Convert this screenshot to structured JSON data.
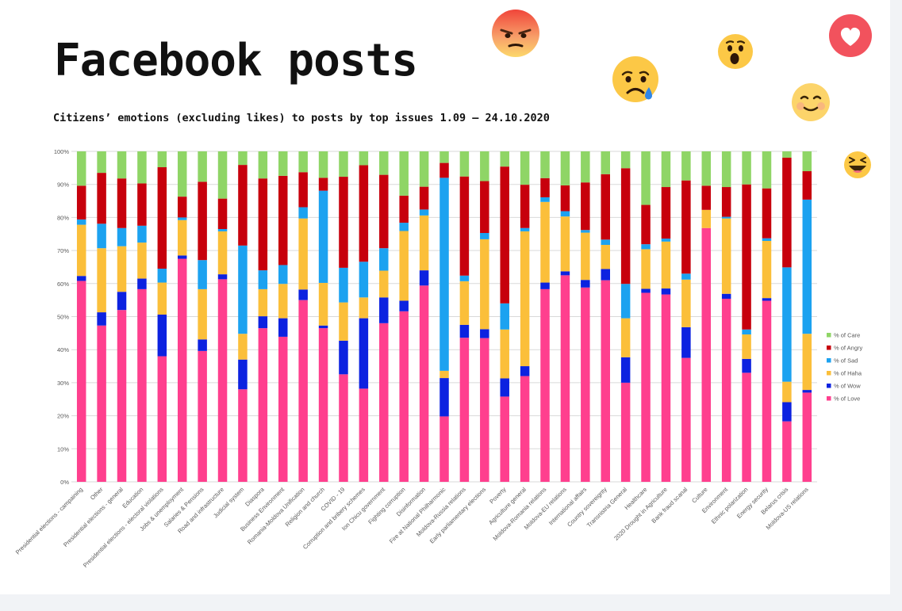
{
  "header": {
    "title": "Facebook posts",
    "subtitle": "Citizens’ emotions (excluding likes) to posts by top issues 1.09 – 24.10.2020"
  },
  "reactions": [
    "angry-reaction",
    "sad-reaction",
    "wow-reaction",
    "love-reaction",
    "care-reaction",
    "haha-reaction"
  ],
  "colors": {
    "love": "#ff3f8e",
    "wow": "#0c22e0",
    "haha": "#fbbf3a",
    "sad": "#1ca2f0",
    "angry": "#c7000c",
    "care": "#8fd566",
    "grid": "#d9d9d9",
    "axis_text": "#595959"
  },
  "chart_data": {
    "type": "bar",
    "stacked": true,
    "grid": true,
    "legend_position": "right",
    "ylim": [
      0,
      100
    ],
    "y_ticks": [
      "0%",
      "10%",
      "20%",
      "30%",
      "40%",
      "50%",
      "60%",
      "70%",
      "80%",
      "90%",
      "100%"
    ],
    "categories": [
      "Presidential elections - campaining",
      "Other",
      "Presidential elections - general",
      "Education",
      "Presidential elections - electoral violations",
      "Jobs & unemployment",
      "Salaries & Pensions",
      "Road and infrastructure",
      "Judicial system",
      "Diaspora",
      "Business Environment",
      "Romania-Moldova Unification",
      "Religion and church",
      "COVID - 19",
      "Corruption and bribery schemes",
      "Ion Chicu government",
      "Fighting corruption",
      "Disinformation",
      "Fire at National Philharmonic",
      "Moldova-Russia relations",
      "Early parliamentary elections",
      "Poverty",
      "Agriculture general",
      "Moldova-Romania relations",
      "Moldova-EU relations",
      "International affairs",
      "Country sovereignty",
      "Transnistria General",
      "Healthcare",
      "2020 Drought in Agriculture",
      "Bank fraud scanal",
      "Culture",
      "Environment",
      "Ethnic polarization",
      "Energy security",
      "Belarus crisis",
      "Moldova-US relations"
    ],
    "legend": [
      "% of Care",
      "% of Angry",
      "% of Sad",
      "% of Haha",
      "% of Wow",
      "% of Love"
    ],
    "series": [
      {
        "name": "% of Love",
        "key": "love",
        "values": [
          60.8,
          47.3,
          52,
          58.3,
          38,
          67.5,
          39.6,
          61.3,
          28,
          46.5,
          43.9,
          55,
          46.5,
          32.6,
          28.2,
          48,
          51.6,
          59.4,
          19.8,
          43.6,
          43.5,
          25.8,
          32,
          58.3,
          62.5,
          58.8,
          61,
          30,
          57.2,
          56.7,
          37.5,
          76.8,
          55.4,
          33,
          54.8,
          18.3,
          27
        ]
      },
      {
        "name": "% of Wow",
        "key": "wow",
        "values": [
          1.5,
          4,
          5.5,
          3.2,
          12.6,
          1,
          3.5,
          1.5,
          9,
          3.6,
          5.6,
          3.2,
          0.8,
          10.2,
          21.3,
          7.8,
          3.2,
          4.6,
          11.6,
          3.9,
          2.7,
          5.5,
          3,
          2,
          1.2,
          2.3,
          3.4,
          7.7,
          1.2,
          1.8,
          9.3,
          0,
          1.5,
          4.2,
          0.8,
          5.8,
          0.8
        ]
      },
      {
        "name": "% of Haha",
        "key": "haha",
        "values": [
          15.5,
          19.4,
          13.8,
          10.9,
          9.7,
          10.7,
          15.2,
          13,
          7.8,
          8.2,
          10.4,
          21.5,
          12.9,
          11.6,
          6.3,
          8.1,
          21.1,
          16.6,
          2.2,
          13.2,
          27.2,
          14.8,
          40.8,
          24.4,
          16.6,
          14.3,
          7.3,
          11.8,
          12,
          14.2,
          14.4,
          5.5,
          22.8,
          7.4,
          17.3,
          6.2,
          17
        ]
      },
      {
        "name": "% of Sad",
        "key": "sad",
        "values": [
          1.6,
          7.4,
          5.5,
          5.1,
          4.2,
          0.8,
          8.8,
          0.7,
          26.7,
          5.7,
          5.7,
          3.4,
          27.9,
          10.5,
          10.8,
          6.8,
          2.5,
          1.8,
          58.4,
          1.7,
          1.9,
          7.9,
          1,
          1.4,
          1.6,
          0.8,
          1.6,
          10.4,
          1.5,
          0.9,
          1.8,
          0,
          0.5,
          1.5,
          0.8,
          34.6,
          40.6
        ]
      },
      {
        "name": "% of Angry",
        "key": "angry",
        "values": [
          10.2,
          15.4,
          15,
          12.8,
          30.7,
          6.3,
          23.7,
          9.2,
          24.4,
          27.8,
          27,
          10.6,
          3.9,
          27.6,
          29.2,
          22.2,
          8.2,
          6.9,
          4.5,
          30,
          15.7,
          41.4,
          13.1,
          5.8,
          7.8,
          14.4,
          19.8,
          35,
          11.9,
          15.6,
          28.2,
          7.3,
          9,
          43.9,
          15.1,
          33.2,
          8.6
        ]
      },
      {
        "name": "% of Care",
        "key": "care",
        "values": [
          10.4,
          6.5,
          8.2,
          9.7,
          4.8,
          13.7,
          9.2,
          14.3,
          4.1,
          8.2,
          7.4,
          6.3,
          8,
          7.7,
          4.2,
          7.1,
          13.4,
          10.7,
          3.5,
          7.6,
          9,
          4.6,
          10.1,
          8.1,
          10.3,
          9.4,
          6.9,
          5.1,
          16.2,
          10.8,
          8.8,
          10.4,
          10.8,
          10,
          11.2,
          1.9,
          6
        ]
      }
    ]
  }
}
